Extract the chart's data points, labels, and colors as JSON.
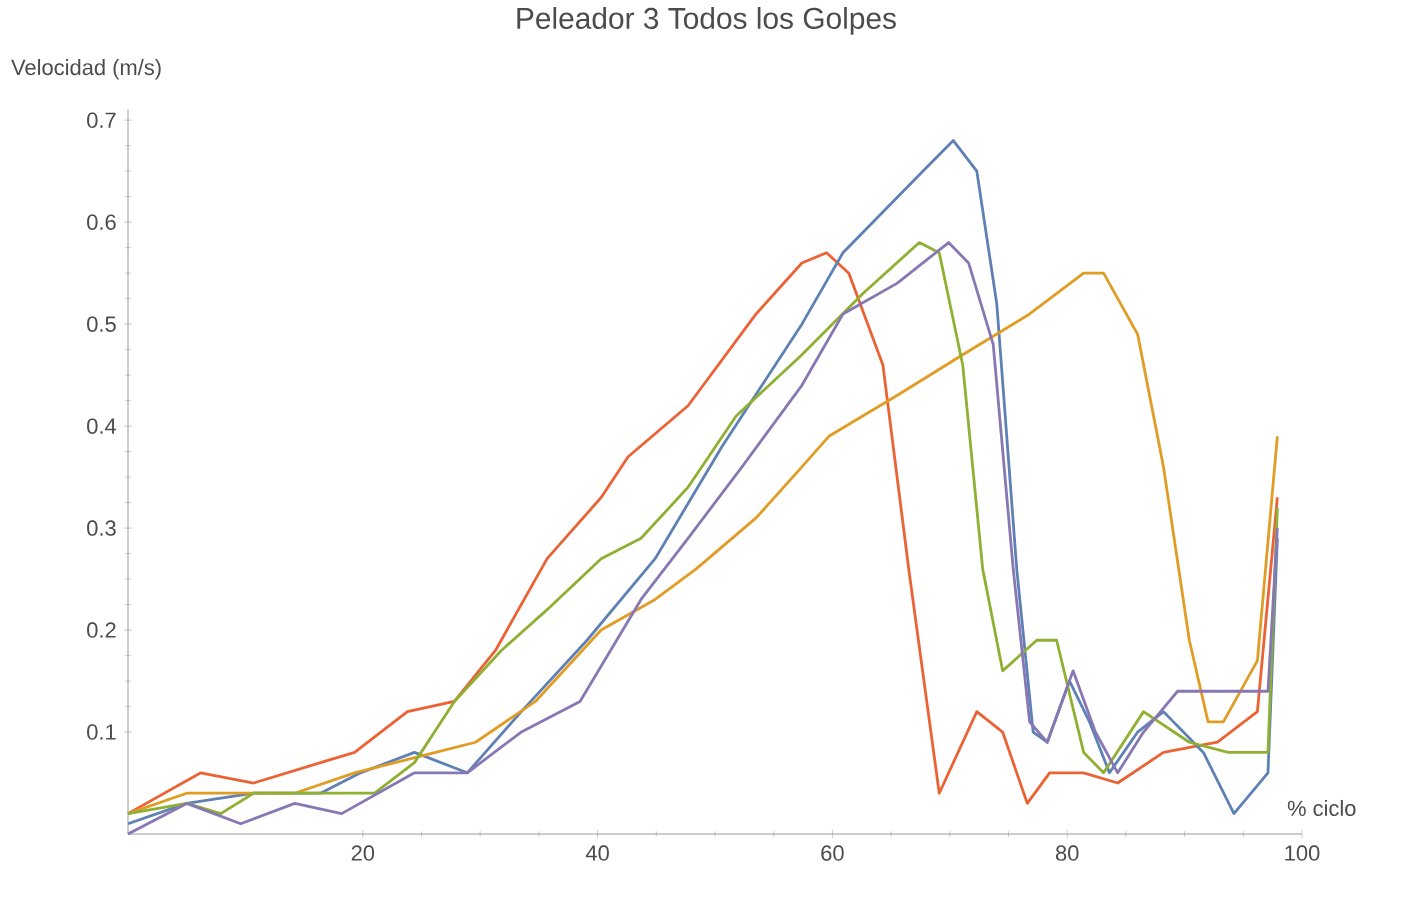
{
  "chart_data": {
    "type": "line",
    "title": "Peleador 3 Todos los Golpes",
    "xlabel": "% ciclo",
    "ylabel": "Velocidad (m/s)",
    "xlim": [
      0,
      100
    ],
    "ylim": [
      0,
      0.71
    ],
    "xticks": [
      20,
      40,
      60,
      80,
      100
    ],
    "yticks": [
      0.1,
      0.2,
      0.3,
      0.4,
      0.5,
      0.6,
      0.7
    ],
    "grid": false,
    "marker": "none",
    "line_style": "solid",
    "series": [
      {
        "color": "#eb6235",
        "x": [
          0,
          6.2,
          10.7,
          16.4,
          19.3,
          23.8,
          27.8,
          31.3,
          35.7,
          40.3,
          42.6,
          47.7,
          53.5,
          57.4,
          59.5,
          61.4,
          64.3,
          66.5,
          69.1,
          72.3,
          74.5,
          76.6,
          78.5,
          81.4,
          84.3,
          88.2,
          92.8,
          96.2,
          97.9
        ],
        "values": [
          0.02,
          0.06,
          0.05,
          0.07,
          0.08,
          0.12,
          0.13,
          0.18,
          0.27,
          0.33,
          0.37,
          0.42,
          0.51,
          0.56,
          0.57,
          0.55,
          0.46,
          0.26,
          0.04,
          0.12,
          0.1,
          0.03,
          0.06,
          0.06,
          0.05,
          0.08,
          0.09,
          0.12,
          0.33
        ]
      },
      {
        "color": "#5e81b5",
        "x": [
          0,
          5,
          10.7,
          16.4,
          19.8,
          24.4,
          28.9,
          33.5,
          39.1,
          44.9,
          50.6,
          54,
          57.4,
          60.9,
          64.3,
          67.7,
          70.3,
          72.3,
          74,
          75.7,
          77.1,
          78.3,
          80.2,
          81.9,
          83.6,
          86,
          88.2,
          91.6,
          94.2,
          97.1,
          97.9
        ],
        "values": [
          0.01,
          0.03,
          0.04,
          0.04,
          0.06,
          0.08,
          0.06,
          0.12,
          0.19,
          0.27,
          0.38,
          0.44,
          0.5,
          0.57,
          0.61,
          0.65,
          0.68,
          0.65,
          0.52,
          0.26,
          0.1,
          0.09,
          0.15,
          0.11,
          0.06,
          0.1,
          0.12,
          0.08,
          0.02,
          0.06,
          0.29
        ]
      },
      {
        "color": "#e19c24",
        "x": [
          0,
          5,
          14.2,
          19.3,
          26.2,
          29.6,
          34.7,
          40.3,
          44.9,
          48.4,
          53.5,
          57.4,
          59.7,
          65.5,
          71.1,
          76.8,
          81.4,
          83.1,
          86,
          88.2,
          90.4,
          92,
          93.3,
          96.2,
          97.9
        ],
        "values": [
          0.02,
          0.04,
          0.04,
          0.06,
          0.08,
          0.09,
          0.13,
          0.2,
          0.23,
          0.26,
          0.31,
          0.36,
          0.39,
          0.43,
          0.47,
          0.51,
          0.55,
          0.55,
          0.49,
          0.36,
          0.19,
          0.11,
          0.11,
          0.17,
          0.39
        ]
      },
      {
        "color": "#8fb032",
        "x": [
          0,
          5,
          7.9,
          10.7,
          16.4,
          21,
          24.4,
          27.8,
          31.8,
          35.7,
          40.3,
          43.7,
          47.7,
          51.8,
          57.4,
          62.6,
          67.4,
          69.1,
          71.1,
          72.8,
          74.5,
          77.4,
          79.1,
          81.4,
          83.1,
          86.5,
          90.4,
          93.7,
          97.1,
          97.9
        ],
        "values": [
          0.02,
          0.03,
          0.02,
          0.04,
          0.04,
          0.04,
          0.07,
          0.13,
          0.18,
          0.22,
          0.27,
          0.29,
          0.34,
          0.41,
          0.47,
          0.53,
          0.58,
          0.57,
          0.46,
          0.26,
          0.16,
          0.19,
          0.19,
          0.08,
          0.06,
          0.12,
          0.09,
          0.08,
          0.08,
          0.32
        ]
      },
      {
        "color": "#8778b3",
        "x": [
          0,
          5,
          9.6,
          14.2,
          18.2,
          24.4,
          28.9,
          33.5,
          38.5,
          43.7,
          47.7,
          52.3,
          57.4,
          60.9,
          65.5,
          69.9,
          71.6,
          73.7,
          75.4,
          76.8,
          78.3,
          80.5,
          82.4,
          84.3,
          86.5,
          89.4,
          93.7,
          97.1,
          97.9
        ],
        "values": [
          0,
          0.03,
          0.01,
          0.03,
          0.02,
          0.06,
          0.06,
          0.1,
          0.13,
          0.23,
          0.29,
          0.36,
          0.44,
          0.51,
          0.54,
          0.58,
          0.56,
          0.48,
          0.26,
          0.11,
          0.09,
          0.16,
          0.1,
          0.06,
          0.1,
          0.14,
          0.14,
          0.14,
          0.3
        ]
      }
    ]
  }
}
